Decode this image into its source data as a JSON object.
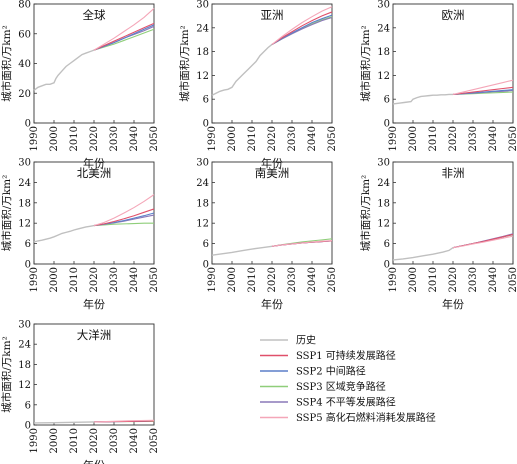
{
  "chart_data": [
    {
      "type": "line",
      "title": "全球",
      "xlabel": "年份",
      "ylabel": "城市面积/万km²",
      "xlim": [
        1990,
        2050
      ],
      "ylim": [
        0,
        80
      ],
      "xticks": [
        "1990",
        "2000",
        "2010",
        "2020",
        "2030",
        "2040",
        "2050"
      ],
      "yticks": [
        "0",
        "20",
        "40",
        "60",
        "80"
      ],
      "history": {
        "x": [
          1990,
          1992,
          1994,
          1996,
          1998,
          2000,
          2001,
          2002,
          2004,
          2006,
          2008,
          2010,
          2012,
          2014,
          2016,
          2018,
          2020
        ],
        "y": [
          22,
          24,
          25,
          26,
          26,
          27,
          30,
          32,
          35,
          38,
          40,
          42,
          44,
          46,
          47,
          48,
          49
        ]
      },
      "scenarios": {
        "x": [
          2020,
          2025,
          2030,
          2035,
          2040,
          2045,
          2050
        ],
        "SSP1": [
          49,
          52,
          55,
          58,
          61,
          64,
          67
        ],
        "SSP2": [
          49,
          51.5,
          54,
          57,
          60,
          63,
          66
        ],
        "SSP3": [
          49,
          51,
          53,
          55.5,
          58,
          60.5,
          63
        ],
        "SSP4": [
          49,
          51.5,
          54,
          57,
          59.5,
          62,
          65
        ],
        "SSP5": [
          49,
          53,
          57,
          61.5,
          66,
          71,
          77
        ]
      }
    },
    {
      "type": "line",
      "title": "亚洲",
      "xlabel": "年份",
      "ylabel": "城市面积/万km²",
      "xlim": [
        1990,
        2050
      ],
      "ylim": [
        0,
        30
      ],
      "xticks": [
        "1990",
        "2000",
        "2010",
        "2020",
        "2030",
        "2040",
        "2050"
      ],
      "yticks": [
        "0",
        "6",
        "12",
        "18",
        "24",
        "30"
      ],
      "history": {
        "x": [
          1990,
          1992,
          1994,
          1996,
          1998,
          2000,
          2002,
          2004,
          2006,
          2008,
          2010,
          2012,
          2014,
          2016,
          2018,
          2020
        ],
        "y": [
          7,
          7.5,
          8,
          8.3,
          8.5,
          9,
          10.5,
          11.5,
          12.5,
          13.5,
          14.5,
          15.5,
          17,
          18,
          19,
          19.8
        ]
      },
      "scenarios": {
        "x": [
          2020,
          2025,
          2030,
          2035,
          2040,
          2045,
          2050
        ],
        "SSP1": [
          19.8,
          21.5,
          23,
          24.5,
          25.8,
          27,
          28
        ],
        "SSP2": [
          19.8,
          21.3,
          22.7,
          24,
          25.3,
          26.3,
          27.2
        ],
        "SSP3": [
          19.8,
          21.2,
          22.5,
          23.8,
          25,
          26,
          26.8
        ],
        "SSP4": [
          19.8,
          21.2,
          22.5,
          23.7,
          24.8,
          25.8,
          26.6
        ],
        "SSP5": [
          19.8,
          21.8,
          23.6,
          25.3,
          26.8,
          28.2,
          29.3
        ]
      }
    },
    {
      "type": "line",
      "title": "欧洲",
      "xlabel": "",
      "ylabel": "城市面积/万km²",
      "xlim": [
        1990,
        2050
      ],
      "ylim": [
        0,
        30
      ],
      "xticks": [
        "1990",
        "2000",
        "2010",
        "2020",
        "2030",
        "2040",
        "2050"
      ],
      "yticks": [
        "0",
        "6",
        "12",
        "18",
        "24",
        "30"
      ],
      "history": {
        "x": [
          1990,
          1993,
          1996,
          1999,
          2000,
          2002,
          2004,
          2006,
          2008,
          2010,
          2012,
          2014,
          2016,
          2018,
          2020
        ],
        "y": [
          4.8,
          5,
          5.2,
          5.4,
          6,
          6.4,
          6.7,
          6.8,
          6.9,
          7,
          7,
          7.1,
          7.1,
          7.2,
          7.2
        ]
      },
      "scenarios": {
        "x": [
          2020,
          2025,
          2030,
          2035,
          2040,
          2045,
          2050
        ],
        "SSP1": [
          7.2,
          7.5,
          7.8,
          8.1,
          8.4,
          8.7,
          9
        ],
        "SSP2": [
          7.2,
          7.4,
          7.6,
          7.8,
          8,
          8.2,
          8.4
        ],
        "SSP3": [
          7.2,
          7.3,
          7.4,
          7.5,
          7.6,
          7.7,
          7.8
        ],
        "SSP4": [
          7.2,
          7.4,
          7.5,
          7.7,
          7.9,
          8,
          8.2
        ],
        "SSP5": [
          7.2,
          7.8,
          8.4,
          9,
          9.6,
          10.2,
          10.8
        ]
      }
    },
    {
      "type": "line",
      "title": "北美洲",
      "xlabel": "年份",
      "ylabel": "城市面积/万km²",
      "xlim": [
        1990,
        2050
      ],
      "ylim": [
        0,
        30
      ],
      "xticks": [
        "1990",
        "2000",
        "2010",
        "2020",
        "2030",
        "2040",
        "2050"
      ],
      "yticks": [
        "0",
        "6",
        "12",
        "18",
        "24",
        "30"
      ],
      "history": {
        "x": [
          1990,
          1992,
          1994,
          1996,
          1998,
          2000,
          2002,
          2004,
          2006,
          2008,
          2010,
          2012,
          2014,
          2016,
          2018,
          2020
        ],
        "y": [
          6.5,
          6.8,
          7,
          7.3,
          7.6,
          8,
          8.5,
          9,
          9.3,
          9.6,
          10,
          10.3,
          10.6,
          10.9,
          11.1,
          11.3
        ]
      },
      "scenarios": {
        "x": [
          2020,
          2025,
          2030,
          2035,
          2040,
          2045,
          2050
        ],
        "SSP1": [
          11.3,
          11.8,
          12.5,
          13.3,
          14.2,
          15.2,
          16.2
        ],
        "SSP2": [
          11.3,
          11.7,
          12.2,
          12.8,
          13.5,
          14.2,
          15
        ],
        "SSP3": [
          11.3,
          11.5,
          11.7,
          11.8,
          11.9,
          12,
          12
        ],
        "SSP4": [
          11.3,
          11.7,
          12.1,
          12.6,
          13.2,
          13.8,
          14.4
        ],
        "SSP5": [
          11.3,
          12.2,
          13.5,
          15,
          16.6,
          18.4,
          20.4
        ]
      }
    },
    {
      "type": "line",
      "title": "南美洲",
      "xlabel": "年份",
      "ylabel": "",
      "xlim": [
        1990,
        2050
      ],
      "ylim": [
        0,
        30
      ],
      "xticks": [
        "1990",
        "2000",
        "2010",
        "2020",
        "2030",
        "2040",
        "2050"
      ],
      "yticks": [
        "0",
        "6",
        "12",
        "18",
        "24",
        "30"
      ],
      "history": {
        "x": [
          1990,
          1995,
          2000,
          2005,
          2010,
          2015,
          2020
        ],
        "y": [
          2.6,
          3,
          3.4,
          3.9,
          4.4,
          4.8,
          5.2
        ]
      },
      "scenarios": {
        "x": [
          2020,
          2025,
          2030,
          2035,
          2040,
          2045,
          2050
        ],
        "SSP1": [
          5.2,
          5.6,
          5.9,
          6.2,
          6.4,
          6.6,
          6.8
        ],
        "SSP2": [
          5.2,
          5.6,
          5.9,
          6.2,
          6.4,
          6.6,
          6.8
        ],
        "SSP3": [
          5.2,
          5.7,
          6.1,
          6.5,
          6.8,
          7.1,
          7.4
        ],
        "SSP4": [
          5.2,
          5.6,
          5.9,
          6.2,
          6.4,
          6.6,
          6.8
        ],
        "SSP5": [
          5.2,
          5.6,
          5.9,
          6.2,
          6.5,
          6.7,
          6.9
        ]
      }
    },
    {
      "type": "line",
      "title": "非洲",
      "xlabel": "年份",
      "ylabel": "城市面积/万km²",
      "xlim": [
        1990,
        2050
      ],
      "ylim": [
        0,
        30
      ],
      "xticks": [
        "1990",
        "2000",
        "2010",
        "2020",
        "2030",
        "2040",
        "2050"
      ],
      "yticks": [
        "0",
        "6",
        "12",
        "18",
        "24",
        "30"
      ],
      "history": {
        "x": [
          1990,
          1995,
          2000,
          2005,
          2010,
          2015,
          2018,
          2020
        ],
        "y": [
          1.2,
          1.5,
          1.9,
          2.4,
          2.9,
          3.5,
          4,
          4.8
        ]
      },
      "scenarios": {
        "x": [
          2020,
          2025,
          2030,
          2035,
          2040,
          2045,
          2050
        ],
        "SSP1": [
          4.8,
          5.4,
          6,
          6.6,
          7.3,
          8,
          8.7
        ],
        "SSP2": [
          4.8,
          5.4,
          6,
          6.6,
          7.3,
          8,
          8.7
        ],
        "SSP3": [
          4.8,
          5.4,
          6,
          6.6,
          7.3,
          8,
          8.6
        ],
        "SSP4": [
          4.8,
          5.4,
          6,
          6.7,
          7.4,
          8.1,
          8.9
        ],
        "SSP5": [
          4.8,
          5.3,
          5.9,
          6.4,
          7,
          7.6,
          8.2
        ]
      }
    },
    {
      "type": "line",
      "title": "大洋洲",
      "xlabel": "年份",
      "ylabel": "城市面积/万km²",
      "xlim": [
        1990,
        2050
      ],
      "ylim": [
        0,
        30
      ],
      "xticks": [
        "1990",
        "2000",
        "2010",
        "2020",
        "2030",
        "2040",
        "2050"
      ],
      "yticks": [
        "0",
        "6",
        "12",
        "18",
        "24",
        "30"
      ],
      "history": {
        "x": [
          1990,
          2000,
          2010,
          2020
        ],
        "y": [
          0.6,
          0.7,
          0.8,
          0.9
        ]
      },
      "scenarios": {
        "x": [
          2020,
          2030,
          2040,
          2050
        ],
        "SSP1": [
          0.9,
          1,
          1.1,
          1.2
        ],
        "SSP2": [
          0.9,
          1,
          1.1,
          1.2
        ],
        "SSP3": [
          0.9,
          1,
          1,
          1.1
        ],
        "SSP4": [
          0.9,
          1,
          1.1,
          1.2
        ],
        "SSP5": [
          0.9,
          1.1,
          1.3,
          1.4
        ]
      }
    }
  ],
  "legend": {
    "items": [
      {
        "key": "history",
        "label": "历史",
        "color": "#c0c0c0"
      },
      {
        "key": "SSP1",
        "label": "SSP1 可持续发展路径",
        "color": "#e0506a"
      },
      {
        "key": "SSP2",
        "label": "SSP2 中间路径",
        "color": "#5b7fc9"
      },
      {
        "key": "SSP3",
        "label": "SSP3 区域竞争路径",
        "color": "#8fce7a"
      },
      {
        "key": "SSP4",
        "label": "SSP4 不平等发展路径",
        "color": "#8a78b8"
      },
      {
        "key": "SSP5",
        "label": "SSP5 高化石燃料消耗发展路径",
        "color": "#f4a6b8"
      }
    ]
  }
}
